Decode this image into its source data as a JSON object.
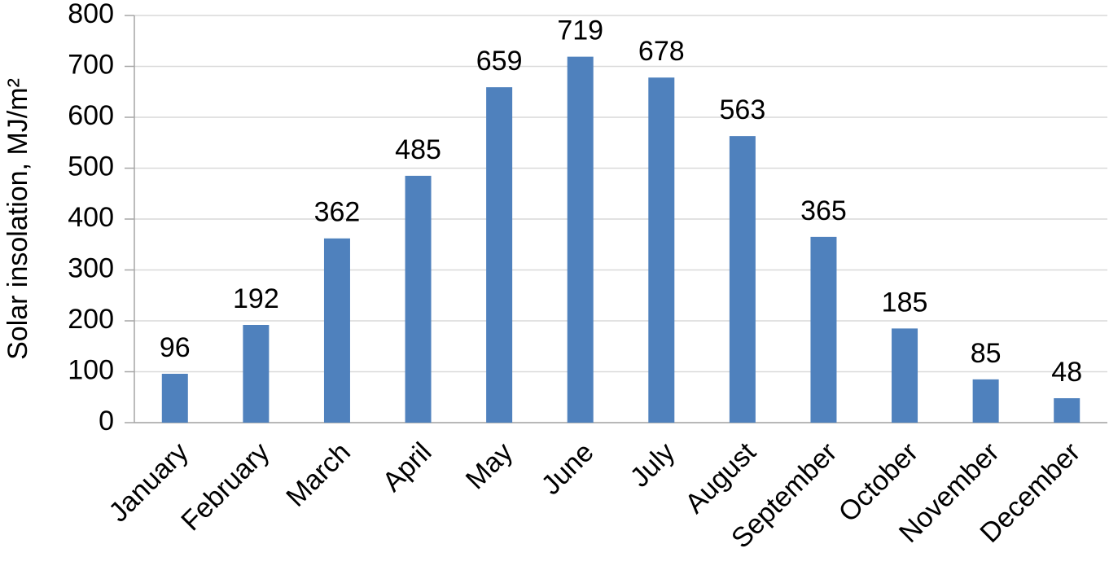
{
  "chart_data": {
    "type": "bar",
    "y_label": "Solar insolation, MJ/m²",
    "categories": [
      "January",
      "February",
      "March",
      "April",
      "May",
      "June",
      "July",
      "August",
      "September",
      "October",
      "November",
      "December"
    ],
    "values": [
      96,
      192,
      362,
      485,
      659,
      719,
      678,
      563,
      365,
      185,
      85,
      48
    ],
    "color": "#4f81bd",
    "ylim": [
      0,
      800
    ],
    "yticks": [
      0,
      100,
      200,
      300,
      400,
      500,
      600,
      700,
      800
    ],
    "grid": true
  }
}
